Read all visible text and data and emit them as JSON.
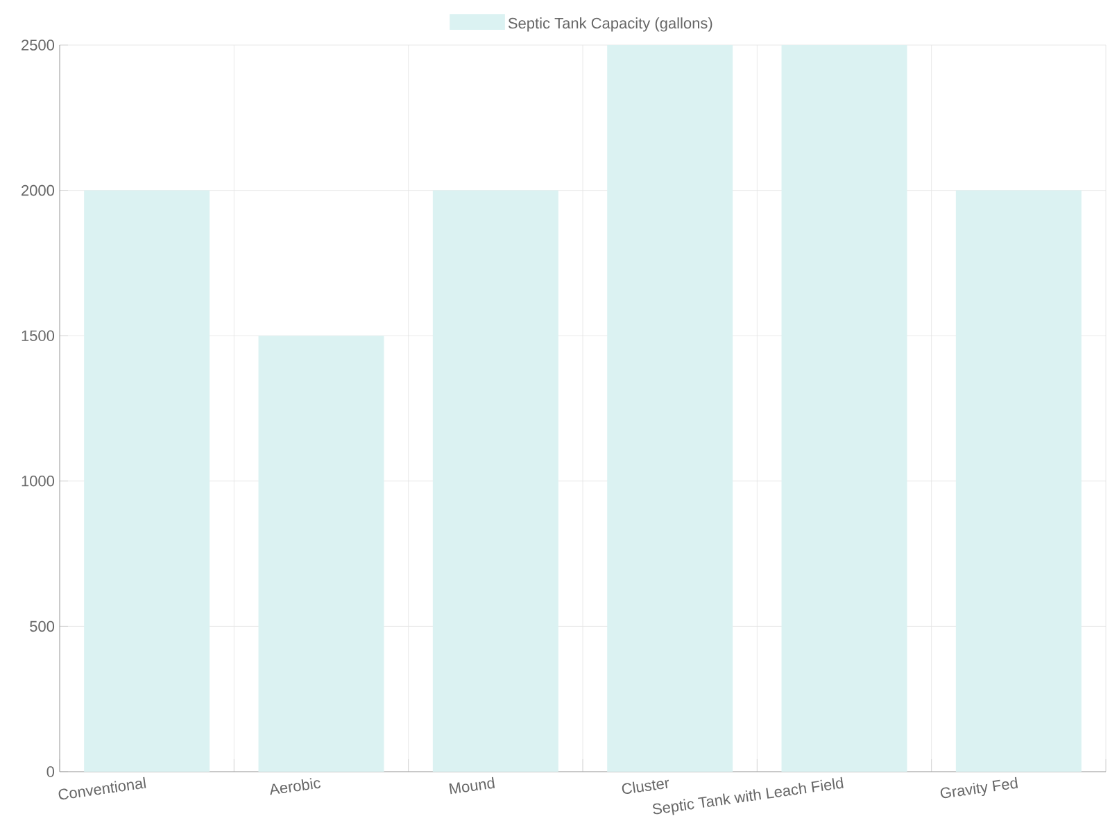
{
  "chart_data": {
    "type": "bar",
    "categories": [
      "Conventional",
      "Aerobic",
      "Mound",
      "Cluster",
      "Septic Tank with Leach Field",
      "Gravity Fed"
    ],
    "series": [
      {
        "name": "Septic Tank Capacity (gallons)",
        "color": "#dbf2f2",
        "values": [
          2000,
          1500,
          2000,
          2500,
          2500,
          2000
        ]
      }
    ],
    "ylim": [
      0,
      2500
    ],
    "yticks": [
      0,
      500,
      1000,
      1500,
      2000,
      2500
    ],
    "grid": true,
    "legend": "top"
  }
}
